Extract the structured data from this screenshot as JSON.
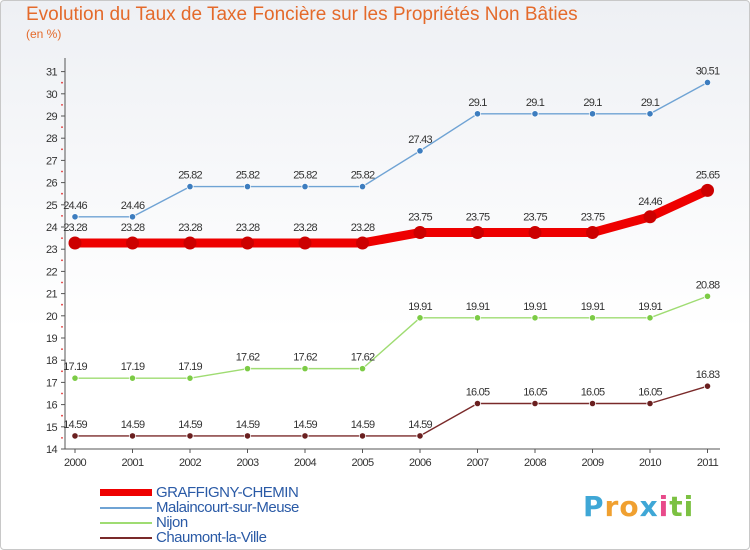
{
  "chart_data": {
    "type": "line",
    "title": "Evolution du Taux de Taxe Foncière sur les Propriétés Non Bâties",
    "ylabel": "(en %)",
    "xlabel": "",
    "ylim": [
      14,
      31
    ],
    "yticks": [
      14,
      15,
      16,
      17,
      18,
      19,
      20,
      21,
      22,
      23,
      24,
      25,
      26,
      27,
      28,
      29,
      30,
      31
    ],
    "categories": [
      "2000",
      "2001",
      "2002",
      "2003",
      "2004",
      "2005",
      "2006",
      "2007",
      "2008",
      "2009",
      "2010",
      "2011"
    ],
    "series": [
      {
        "name": "GRAFFIGNY-CHEMIN",
        "color": "#ee0000",
        "marker_color": "#cc0000",
        "emphasis": true,
        "values": [
          23.28,
          23.28,
          23.28,
          23.28,
          23.28,
          23.28,
          23.75,
          23.75,
          23.75,
          23.75,
          24.46,
          25.65
        ],
        "labels": [
          "23.28",
          "23.28",
          "23.28",
          "23.28",
          "23.28",
          "23.28",
          "23.75",
          "23.75",
          "23.75",
          "23.75",
          "24.46",
          "25.65"
        ]
      },
      {
        "name": "Malaincourt-sur-Meuse",
        "color": "#6fa3d4",
        "marker_color": "#3d7dbf",
        "emphasis": false,
        "values": [
          24.46,
          24.46,
          25.82,
          25.82,
          25.82,
          25.82,
          27.43,
          29.1,
          29.1,
          29.1,
          29.1,
          30.51
        ],
        "labels": [
          "24.46",
          "24.46",
          "25.82",
          "25.82",
          "25.82",
          "25.82",
          "27.43",
          "29.1",
          "29.1",
          "29.1",
          "29.1",
          "30.51"
        ]
      },
      {
        "name": "Nijon",
        "color": "#9fdc72",
        "marker_color": "#7ccb45",
        "emphasis": false,
        "values": [
          17.19,
          17.19,
          17.19,
          17.62,
          17.62,
          17.62,
          19.91,
          19.91,
          19.91,
          19.91,
          19.91,
          20.88
        ],
        "labels": [
          "17.19",
          "17.19",
          "17.19",
          "17.62",
          "17.62",
          "17.62",
          "19.91",
          "19.91",
          "19.91",
          "19.91",
          "19.91",
          "20.88"
        ]
      },
      {
        "name": "Chaumont-la-Ville",
        "color": "#7a2a2a",
        "marker_color": "#6a1f1f",
        "emphasis": false,
        "values": [
          14.59,
          14.59,
          14.59,
          14.59,
          14.59,
          14.59,
          14.59,
          16.05,
          16.05,
          16.05,
          16.05,
          16.83
        ],
        "labels": [
          "14.59",
          "14.59",
          "14.59",
          "14.59",
          "14.59",
          "14.59",
          "14.59",
          "16.05",
          "16.05",
          "16.05",
          "16.05",
          "16.83"
        ]
      }
    ],
    "legend_position": "bottom-left",
    "grid": false
  },
  "logo": {
    "letters": [
      "P",
      "r",
      "o",
      "x",
      "i",
      "t",
      "i"
    ],
    "colors": [
      "#3fa7d6",
      "#f0a030",
      "#f0a030",
      "#3fa7d6",
      "#e84a8a",
      "#7cc142",
      "#7cc142"
    ]
  }
}
